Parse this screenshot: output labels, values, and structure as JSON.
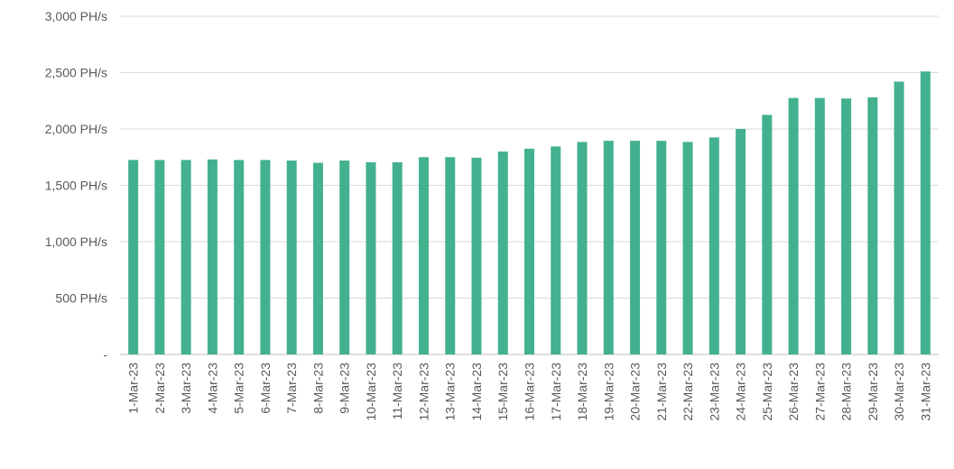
{
  "chart_data": {
    "type": "bar",
    "title": "",
    "xlabel": "",
    "ylabel": "",
    "ylim": [
      0,
      3000
    ],
    "grid": true,
    "legend": "none",
    "bar_color": "#43b18f",
    "y_ticks": [
      {
        "value": 0,
        "label": "-"
      },
      {
        "value": 500,
        "label": "500 PH/s"
      },
      {
        "value": 1000,
        "label": "1,000 PH/s"
      },
      {
        "value": 1500,
        "label": "1,500 PH/s"
      },
      {
        "value": 2000,
        "label": "2,000 PH/s"
      },
      {
        "value": 2500,
        "label": "2,500 PH/s"
      },
      {
        "value": 3000,
        "label": "3,000 PH/s"
      }
    ],
    "categories": [
      "1-Mar-23",
      "2-Mar-23",
      "3-Mar-23",
      "4-Mar-23",
      "5-Mar-23",
      "6-Mar-23",
      "7-Mar-23",
      "8-Mar-23",
      "9-Mar-23",
      "10-Mar-23",
      "11-Mar-23",
      "12-Mar-23",
      "13-Mar-23",
      "14-Mar-23",
      "15-Mar-23",
      "16-Mar-23",
      "17-Mar-23",
      "18-Mar-23",
      "19-Mar-23",
      "20-Mar-23",
      "21-Mar-23",
      "22-Mar-23",
      "23-Mar-23",
      "24-Mar-23",
      "25-Mar-23",
      "26-Mar-23",
      "27-Mar-23",
      "28-Mar-23",
      "29-Mar-23",
      "30-Mar-23",
      "31-Mar-23"
    ],
    "values": [
      1725,
      1725,
      1725,
      1730,
      1725,
      1725,
      1720,
      1700,
      1720,
      1705,
      1705,
      1750,
      1750,
      1745,
      1800,
      1825,
      1845,
      1885,
      1895,
      1895,
      1895,
      1885,
      1925,
      2000,
      2125,
      2275,
      2275,
      2270,
      2280,
      2420,
      2510
    ]
  }
}
